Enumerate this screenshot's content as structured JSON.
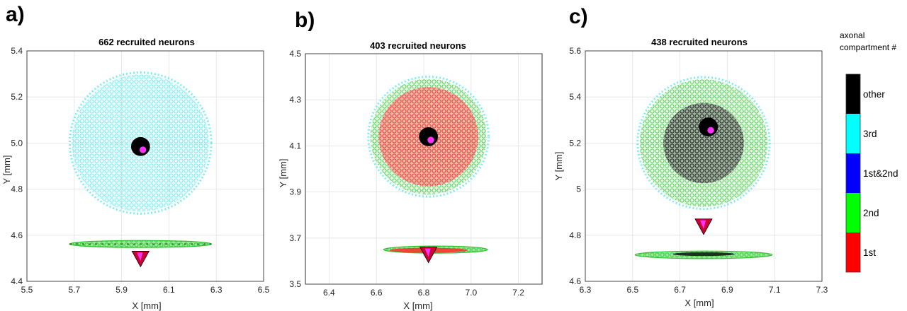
{
  "chart_data": [
    {
      "type": "scatter",
      "panel_label": "a)",
      "title": "662 recruited neurons",
      "xlabel": "X [mm]",
      "ylabel": "Y [mm]",
      "xlim": [
        5.5,
        6.5
      ],
      "ylim": [
        4.4,
        5.4
      ],
      "xticks": [
        "5.5",
        "5.7",
        "5.9",
        "6.1",
        "6.3",
        "6.5"
      ],
      "yticks": [
        "4.4",
        "4.6",
        "4.8",
        "5.0",
        "5.2",
        "5.4"
      ],
      "grid": true,
      "disk": {
        "cx": 5.98,
        "cy": 5.0,
        "r": 0.29,
        "outer": "3rd",
        "inner": "2nd",
        "inner_r": 0.0
      },
      "band": {
        "cx": 5.98,
        "cy": 4.562,
        "rx": 0.3,
        "ry": 0.012
      },
      "electrode": {
        "x": 5.98,
        "y": 4.985,
        "r": 0.04
      },
      "soma_marker": {
        "x": 5.98,
        "y": 4.5
      }
    },
    {
      "type": "scatter",
      "panel_label": "b)",
      "title": "403 recruited neurons",
      "xlabel": "X [mm]",
      "ylabel": "Y [mm]",
      "xlim": [
        6.3,
        7.3
      ],
      "ylim": [
        3.5,
        4.5
      ],
      "xticks": [
        "6.4",
        "6.6",
        "6.8",
        "7.0",
        "7.2"
      ],
      "yticks": [
        "3.5",
        "3.7",
        "3.9",
        "4.1",
        "4.3",
        "4.5"
      ],
      "grid": true,
      "disk": {
        "cx": 6.82,
        "cy": 4.14,
        "r": 0.245,
        "outer": "2nd",
        "inner": "1st",
        "inner_r": 0.21
      },
      "band": {
        "cx": 6.85,
        "cy": 3.65,
        "rx": 0.22,
        "ry": 0.012
      },
      "electrode": {
        "x": 6.82,
        "y": 4.14,
        "r": 0.04
      },
      "soma_marker": {
        "x": 6.82,
        "y": 3.63
      }
    },
    {
      "type": "scatter",
      "panel_label": "c)",
      "title": "438 recruited neurons",
      "xlabel": "X [mm]",
      "ylabel": "Y [mm]",
      "xlim": [
        6.3,
        7.3
      ],
      "ylim": [
        4.6,
        5.6
      ],
      "xticks": [
        "6.3",
        "6.5",
        "6.7",
        "6.9",
        "7.1",
        "7.3"
      ],
      "yticks": [
        "4.6",
        "4.8",
        "5",
        "5.2",
        "5.4",
        "5.6"
      ],
      "grid": true,
      "disk": {
        "cx": 6.8,
        "cy": 5.2,
        "r": 0.27,
        "outer": "2nd",
        "inner": "other",
        "inner_r": 0.17
      },
      "band": {
        "cx": 6.8,
        "cy": 4.715,
        "rx": 0.29,
        "ry": 0.016
      },
      "electrode": {
        "x": 6.82,
        "y": 5.27,
        "r": 0.04
      },
      "soma_marker": {
        "x": 6.8,
        "y": 4.84
      }
    }
  ],
  "colorbar": {
    "title_lines": [
      "axonal",
      "compartment #"
    ],
    "entries": [
      {
        "label": "other",
        "color": "#000000"
      },
      {
        "label": "3rd",
        "color": "#00ffff"
      },
      {
        "label": "1st&2nd",
        "color": "#0000ff"
      },
      {
        "label": "2nd",
        "color": "#00ff00"
      },
      {
        "label": "1st",
        "color": "#ff0000"
      }
    ]
  },
  "colors": {
    "3rd": "#5fe8ec",
    "2nd": "#3ed83e",
    "1st": "#ff3030",
    "other": "#1a1a1a",
    "1st&2nd": "#2233cc",
    "electrode": "#000000",
    "electrode_accent": "#ff33ff"
  }
}
